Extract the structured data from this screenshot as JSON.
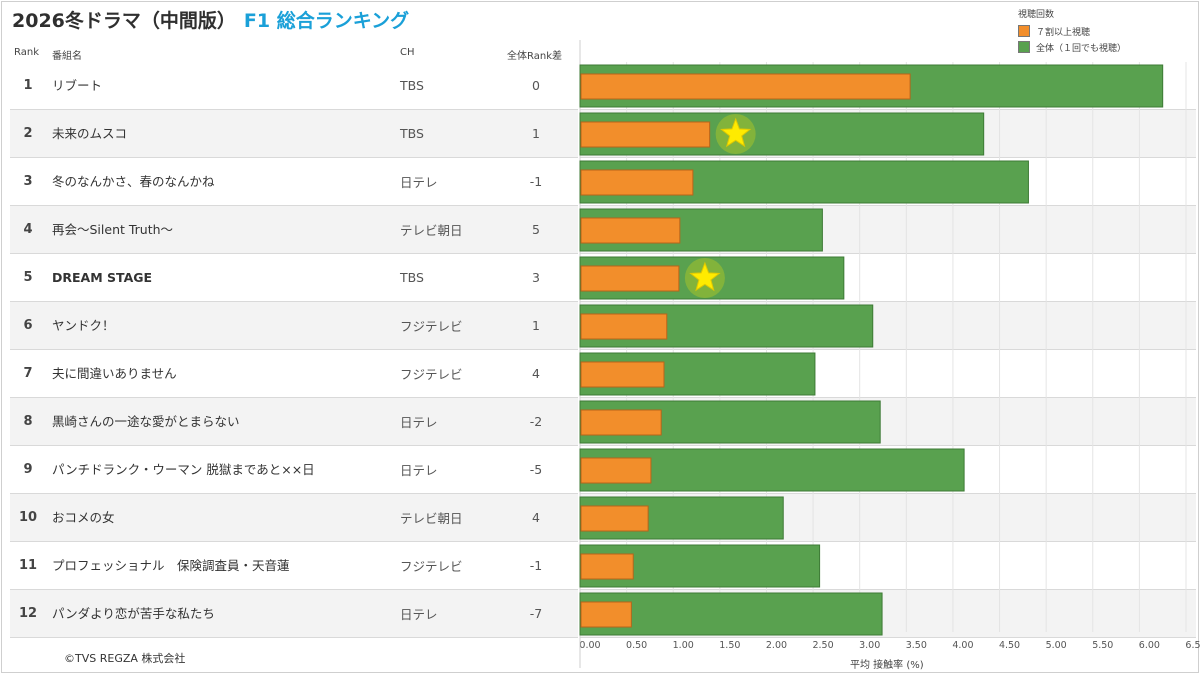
{
  "title": {
    "main": "2026冬ドラマ（中間版）",
    "sub": "F1 総合ランキング"
  },
  "legend": {
    "title": "視聴回数",
    "items": [
      {
        "label": "７割以上視聴",
        "color": "#f28e2b"
      },
      {
        "label": "全体（１回でも視聴）",
        "color": "#59a14f"
      }
    ]
  },
  "headers": {
    "rank": "Rank",
    "program": "番組名",
    "ch": "CH",
    "diff": "全体Rank差"
  },
  "rows": [
    {
      "rank": "1",
      "name": "リブート",
      "ch": "TBS",
      "diff": "0"
    },
    {
      "rank": "2",
      "name": "未来のムスコ",
      "ch": "TBS",
      "diff": "1"
    },
    {
      "rank": "3",
      "name": "冬のなんかさ、春のなんかね",
      "ch": "日テレ",
      "diff": "-1"
    },
    {
      "rank": "4",
      "name": "再会～Silent Truth～",
      "ch": "テレビ朝日",
      "diff": "5"
    },
    {
      "rank": "5",
      "name": "DREAM STAGE",
      "ch": "TBS",
      "diff": "3"
    },
    {
      "rank": "6",
      "name": "ヤンドク！",
      "ch": "フジテレビ",
      "diff": "1"
    },
    {
      "rank": "7",
      "name": "夫に間違いありません",
      "ch": "フジテレビ",
      "diff": "4"
    },
    {
      "rank": "8",
      "name": "黒崎さんの一途な愛がとまらない",
      "ch": "日テレ",
      "diff": "-2"
    },
    {
      "rank": "9",
      "name": "パンチドランク・ウーマン 脱獄まであと××日",
      "ch": "日テレ",
      "diff": "-5"
    },
    {
      "rank": "10",
      "name": "おコメの女",
      "ch": "テレビ朝日",
      "diff": "4"
    },
    {
      "rank": "11",
      "name": "プロフェッショナル　保険調査員・天音蓮",
      "ch": "フジテレビ",
      "diff": "-1"
    },
    {
      "rank": "12",
      "name": "パンダより恋が苦手な私たち",
      "ch": "日テレ",
      "diff": "-7"
    }
  ],
  "chart_data": {
    "type": "bar",
    "orientation": "horizontal",
    "categories": [
      "リブート",
      "未来のムスコ",
      "冬のなんかさ、春のなんかね",
      "再会～Silent Truth～",
      "DREAM STAGE",
      "ヤンドク！",
      "夫に間違いありません",
      "黒崎さんの一途な愛がとまらない",
      "パンチドランク・ウーマン 脱獄まであと××日",
      "おコメの女",
      "プロフェッショナル　保険調査員・天音蓮",
      "パンダより恋が苦手な私たち"
    ],
    "series": [
      {
        "name": "全体（１回でも視聴）",
        "color": "#59a14f",
        "values": [
          6.25,
          4.33,
          4.81,
          2.6,
          2.83,
          3.14,
          2.52,
          3.22,
          4.12,
          2.18,
          2.57,
          3.24
        ]
      },
      {
        "name": "７割以上視聴",
        "color": "#f28e2b",
        "values": [
          3.53,
          1.38,
          1.2,
          1.06,
          1.05,
          0.92,
          0.89,
          0.86,
          0.75,
          0.72,
          0.56,
          0.54
        ]
      }
    ],
    "highlighted_rows": [
      1,
      4
    ],
    "highlight_color": "#ffeb00",
    "xlabel": "平均 接触率 (%)",
    "xlim": [
      0,
      6.5
    ],
    "xticks": [
      "0.00",
      "0.50",
      "1.00",
      "1.50",
      "2.00",
      "2.50",
      "3.00",
      "3.50",
      "4.00",
      "4.50",
      "5.00",
      "5.50",
      "6.00",
      "6.50"
    ],
    "grid": true
  },
  "copyright": "©TVS REGZA 株式会社"
}
